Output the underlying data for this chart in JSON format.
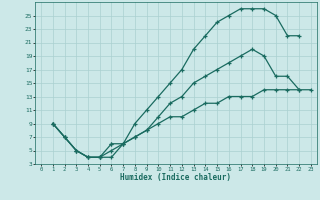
{
  "xlabel": "Humidex (Indice chaleur)",
  "bg_color": "#cce8e8",
  "grid_color": "#aad0d0",
  "line_color": "#1a6b60",
  "xlim": [
    -0.5,
    23.5
  ],
  "ylim": [
    3,
    27
  ],
  "xticks": [
    0,
    1,
    2,
    3,
    4,
    5,
    6,
    7,
    8,
    9,
    10,
    11,
    12,
    13,
    14,
    15,
    16,
    17,
    18,
    19,
    20,
    21,
    22,
    23
  ],
  "yticks": [
    3,
    5,
    7,
    9,
    11,
    13,
    15,
    17,
    19,
    21,
    23,
    25
  ],
  "line1_x": [
    1,
    2,
    3,
    4,
    5,
    5,
    6,
    7,
    8,
    9,
    10,
    11,
    12,
    13,
    14,
    15,
    16,
    17,
    18,
    19,
    20,
    21,
    22
  ],
  "line1_y": [
    9,
    7,
    5,
    4,
    4,
    4,
    4,
    6,
    9,
    11,
    13,
    15,
    17,
    20,
    22,
    24,
    25,
    26,
    26,
    26,
    25,
    22,
    22
  ],
  "line2_x": [
    1,
    2,
    3,
    4,
    5,
    6,
    6,
    7,
    8,
    9,
    10,
    11,
    12,
    13,
    14,
    15,
    16,
    17,
    18,
    19,
    20,
    21,
    22
  ],
  "line2_y": [
    9,
    7,
    5,
    4,
    4,
    6,
    6,
    6,
    7,
    8,
    10,
    12,
    13,
    15,
    16,
    17,
    18,
    19,
    20,
    19,
    16,
    16,
    14
  ],
  "line3_x": [
    1,
    2,
    3,
    4,
    5,
    6,
    7,
    8,
    9,
    10,
    11,
    12,
    13,
    14,
    15,
    16,
    17,
    18,
    19,
    20,
    21,
    22,
    23
  ],
  "line3_y": [
    9,
    7,
    5,
    4,
    4,
    5,
    6,
    7,
    8,
    9,
    10,
    10,
    11,
    12,
    12,
    13,
    13,
    13,
    14,
    14,
    14,
    14,
    14
  ]
}
